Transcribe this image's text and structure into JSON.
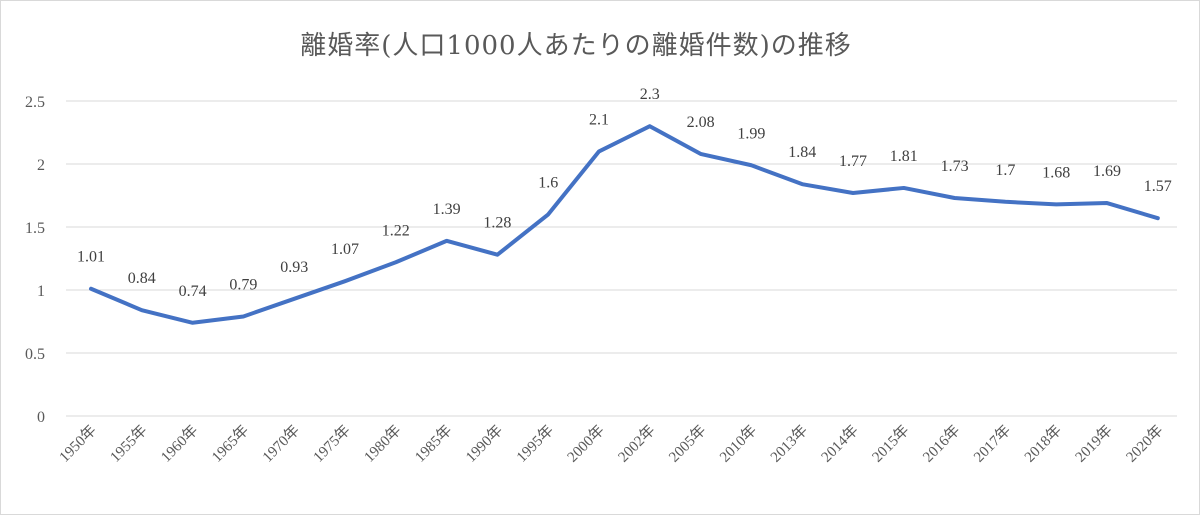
{
  "chart_data": {
    "type": "line",
    "title": "離婚率(人口1000人あたりの離婚件数)の推移",
    "categories": [
      "1950年",
      "1955年",
      "1960年",
      "1965年",
      "1970年",
      "1975年",
      "1980年",
      "1985年",
      "1990年",
      "1995年",
      "2000年",
      "2002年",
      "2005年",
      "2010年",
      "2013年",
      "2014年",
      "2015年",
      "2016年",
      "2017年",
      "2018年",
      "2019年",
      "2020年"
    ],
    "series": [
      {
        "values": [
          1.01,
          0.84,
          0.74,
          0.79,
          0.93,
          1.07,
          1.22,
          1.39,
          1.28,
          1.6,
          2.1,
          2.3,
          2.08,
          1.99,
          1.84,
          1.77,
          1.81,
          1.73,
          1.7,
          1.68,
          1.69,
          1.57
        ],
        "labels": [
          "1.01",
          "0.84",
          "0.74",
          "0.79",
          "0.93",
          "1.07",
          "1.22",
          "1.39",
          "1.28",
          "1.6",
          "2.1",
          "2.3",
          "2.08",
          "1.99",
          "1.84",
          "1.77",
          "1.81",
          "1.73",
          "1.7",
          "1.68",
          "1.69",
          "1.57"
        ],
        "color": "#4472c4"
      }
    ],
    "yticks": [
      "0",
      "0.5",
      "1",
      "1.5",
      "2",
      "2.5"
    ],
    "ylim": [
      0,
      2.5
    ],
    "grid": true,
    "legend": "none"
  }
}
